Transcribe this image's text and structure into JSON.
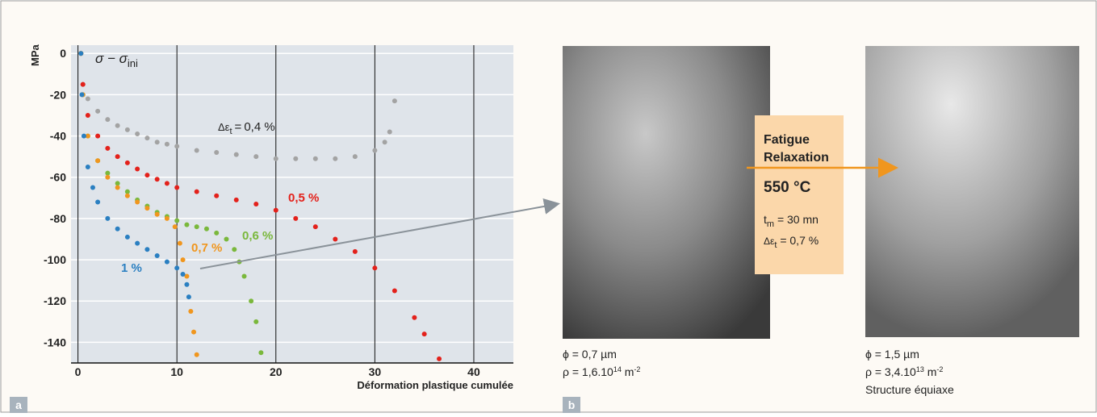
{
  "chart_data": {
    "type": "scatter",
    "y_unit": "MPa",
    "y_label": {
      "base": "σ − σ",
      "sub": "ini"
    },
    "x_label": "Déformation plastique cumulée",
    "panel_label": "a",
    "xlim": [
      -0.7,
      44
    ],
    "xticks": [
      0,
      10,
      20,
      30,
      40
    ],
    "ylim": [
      -150,
      4
    ],
    "yticks": [
      0,
      -20,
      -40,
      -60,
      -80,
      -100,
      -120,
      -140
    ],
    "annotation_prefix": {
      "base": "Δε",
      "sub": "t",
      "eq": "="
    },
    "series": [
      {
        "name": "0,4 %",
        "color": "#a3a3a3",
        "x": [
          0.3,
          0.5,
          1,
          2,
          3,
          4,
          5,
          6,
          7,
          8,
          9,
          10,
          12,
          14,
          16,
          18,
          20,
          22,
          24,
          26,
          28,
          30,
          31,
          31.5,
          32
        ],
        "values": [
          0,
          -15,
          -22,
          -28,
          -32,
          -35,
          -37,
          -39,
          -41,
          -43,
          -44,
          -45,
          -47,
          -48,
          -49,
          -50,
          -51,
          -51,
          -51,
          -51,
          -50,
          -47,
          -43,
          -38,
          -23
        ]
      },
      {
        "name": "0,5 %",
        "color": "#e3211b",
        "x": [
          0.3,
          0.5,
          1,
          2,
          3,
          4,
          5,
          6,
          7,
          8,
          9,
          10,
          12,
          14,
          16,
          18,
          20,
          22,
          24,
          26,
          28,
          30,
          32,
          34,
          35,
          36.5
        ],
        "values": [
          0,
          -15,
          -30,
          -40,
          -46,
          -50,
          -53,
          -56,
          -59,
          -61,
          -63,
          -65,
          -67,
          -69,
          -71,
          -73,
          -76,
          -80,
          -84,
          -90,
          -96,
          -104,
          -115,
          -128,
          -136,
          -148
        ]
      },
      {
        "name": "0,6 %",
        "color": "#7ab83c",
        "x": [
          0.3,
          0.5,
          1,
          2,
          3,
          4,
          5,
          6,
          7,
          8,
          9,
          10,
          11,
          12,
          13,
          14,
          15,
          15.8,
          16.3,
          16.8,
          17.5,
          18,
          18.5
        ],
        "values": [
          0,
          -20,
          -40,
          -52,
          -58,
          -63,
          -67,
          -71,
          -74,
          -77,
          -79,
          -81,
          -83,
          -84,
          -85,
          -87,
          -90,
          -95,
          -101,
          -108,
          -120,
          -130,
          -145
        ]
      },
      {
        "name": "0,7 %",
        "color": "#f0961e",
        "x": [
          0.3,
          0.5,
          1,
          2,
          3,
          4,
          5,
          6,
          7,
          8,
          9,
          9.8,
          10.3,
          10.6,
          11,
          11.4,
          11.7,
          12
        ],
        "values": [
          0,
          -20,
          -40,
          -52,
          -60,
          -65,
          -69,
          -72,
          -75,
          -78,
          -80,
          -84,
          -92,
          -100,
          -108,
          -125,
          -135,
          -146
        ]
      },
      {
        "name": "1 %",
        "color": "#2a7fc1",
        "x": [
          0.3,
          0.4,
          0.6,
          1,
          1.5,
          2,
          3,
          4,
          5,
          6,
          7,
          8,
          9,
          10,
          10.6,
          11,
          11.2
        ],
        "values": [
          0,
          -20,
          -40,
          -55,
          -65,
          -72,
          -80,
          -85,
          -89,
          -92,
          -95,
          -98,
          -101,
          -104,
          -107,
          -112,
          -118
        ]
      }
    ]
  },
  "panel_b": {
    "label": "b",
    "before": {
      "phi": "ϕ = 0,7 µm",
      "rho": {
        "base": "ρ = 1,6.10",
        "exp": "14",
        "unit": " m",
        "unit_exp": "-2"
      }
    },
    "after": {
      "phi": "ϕ = 1,5 µm",
      "rho": {
        "base": "ρ = 3,4.10",
        "exp": "13",
        "unit": " m",
        "unit_exp": "-2"
      },
      "note": "Structure équiaxe"
    },
    "process": {
      "line1": "Fatigue",
      "line2": "Relaxation",
      "temp": "550 °C",
      "tm": {
        "base": "t",
        "sub": "m",
        "rest": " = 30 mn"
      },
      "de": {
        "base": "Δε",
        "sub": "t",
        "rest": " = 0,7 %"
      }
    }
  }
}
